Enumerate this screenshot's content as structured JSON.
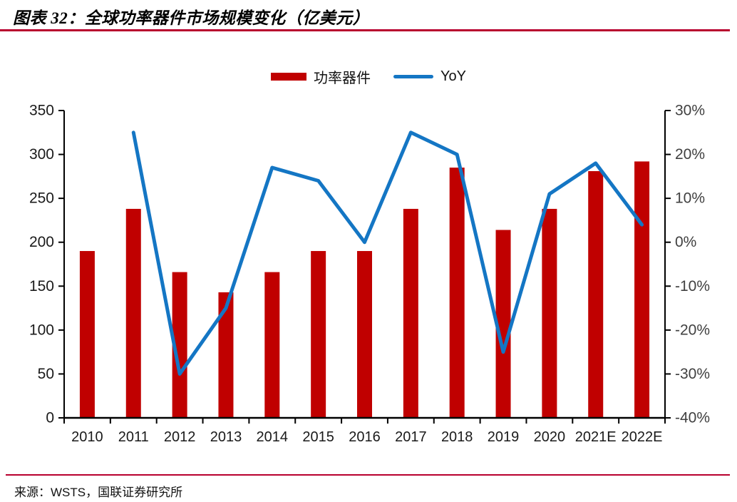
{
  "header": {
    "title": "图表 32：全球功率器件市场规模变化（亿美元）"
  },
  "footer": {
    "source": "来源：WSTS，国联证券研究所"
  },
  "colors": {
    "bar": "#C00000",
    "line": "#1476C4",
    "rule": "#B8002E",
    "axis": "#000000",
    "left_label": "#1A1A1A",
    "right_label": "#404040",
    "x_label": "#1A1A1A"
  },
  "chart_data": {
    "type": "bar",
    "subtype": "combo-bar-line-dual-axis",
    "title": "全球功率器件市场规模变化（亿美元）",
    "categories": [
      "2010",
      "2011",
      "2012",
      "2013",
      "2014",
      "2015",
      "2016",
      "2017",
      "2018",
      "2019",
      "2020",
      "2021E",
      "2022E"
    ],
    "series": [
      {
        "name": "功率器件",
        "type": "bar",
        "axis": "left",
        "values": [
          190,
          238,
          166,
          143,
          166,
          190,
          190,
          238,
          285,
          214,
          238,
          281,
          292
        ]
      },
      {
        "name": "YoY",
        "type": "line",
        "axis": "right",
        "values": [
          null,
          25,
          -30,
          -15,
          17,
          14,
          0,
          25,
          20,
          -25,
          11,
          18,
          4
        ]
      }
    ],
    "left_axis": {
      "min": 0,
      "max": 350,
      "step": 50,
      "tick_labels": [
        "0",
        "50",
        "100",
        "150",
        "200",
        "250",
        "300",
        "350"
      ]
    },
    "right_axis": {
      "min": -40,
      "max": 30,
      "step": 10,
      "tick_labels": [
        "-40%",
        "-30%",
        "-20%",
        "-10%",
        "0%",
        "10%",
        "20%",
        "30%"
      ]
    },
    "xlabel": "",
    "ylabel": "",
    "grid": false,
    "legend_position": "top-center"
  }
}
